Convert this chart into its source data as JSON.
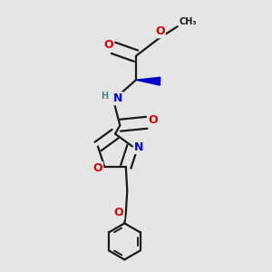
{
  "bg_color": "#e5e5e5",
  "bond_color": "#1a1a1a",
  "bond_width": 1.6,
  "atom_colors": {
    "O": "#dd0000",
    "N": "#0000ee",
    "NH_color": "#4a8a8a",
    "C": "#1a1a1a",
    "wedge": "#0000cc"
  },
  "font_size_atom": 9,
  "font_size_small": 7,
  "figsize": [
    3.0,
    3.0
  ],
  "dpi": 100
}
